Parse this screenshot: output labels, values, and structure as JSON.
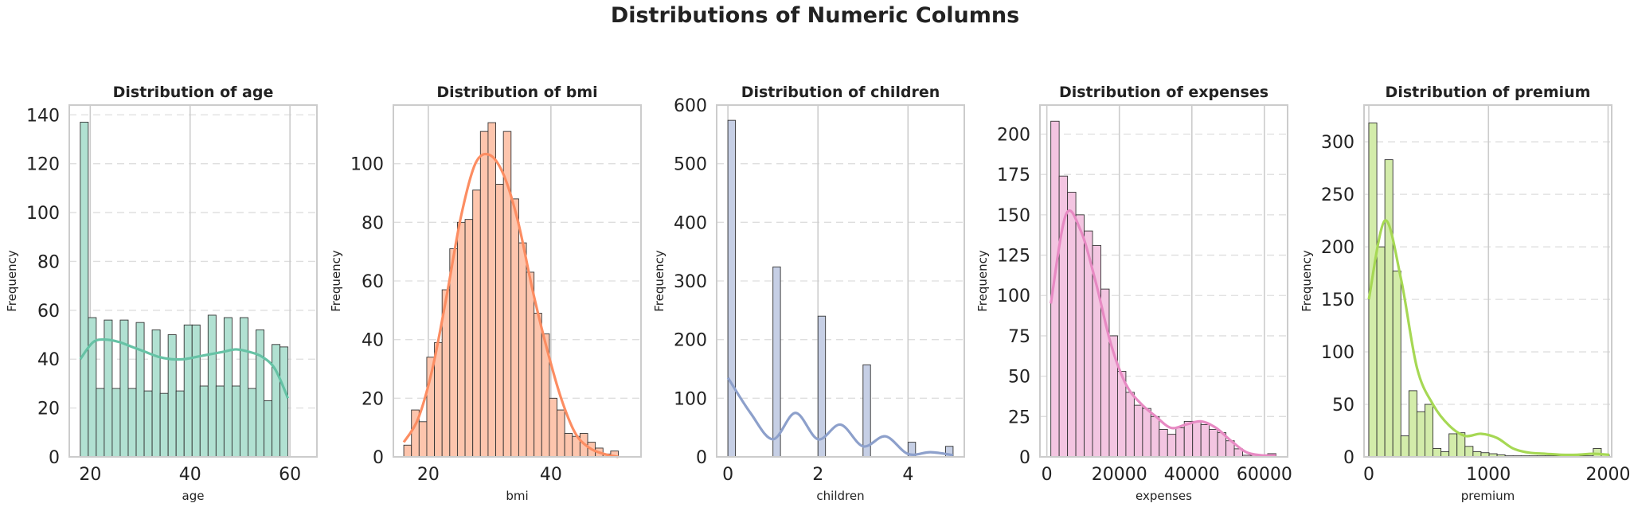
{
  "figure": {
    "title": "Distributions of Numeric Columns"
  },
  "chart_data": [
    {
      "type": "bar",
      "title": "Distribution of age",
      "xlabel": "age",
      "ylabel": "Frequency",
      "xlim": [
        15.8,
        65.4
      ],
      "ylim": [
        0,
        144
      ],
      "xticks": [
        20,
        40,
        60
      ],
      "yticks": [
        0,
        20,
        40,
        60,
        80,
        100,
        120,
        140
      ],
      "grid_x": "solid",
      "grid_y": "dashed",
      "color": "#66c2a5",
      "fill": "#b1e1d2",
      "bin_start": 18,
      "bin_width": 1.6,
      "values": [
        137,
        57,
        28,
        56,
        28,
        56,
        28,
        55,
        27,
        52,
        26,
        50,
        27,
        54,
        54,
        29,
        58,
        29,
        57,
        29,
        57,
        28,
        52,
        23,
        46,
        45
      ],
      "kde": [
        40,
        47,
        48,
        47,
        45,
        43,
        41,
        40,
        40,
        41,
        42,
        43,
        44,
        43,
        41,
        36,
        24
      ]
    },
    {
      "type": "bar",
      "title": "Distribution of bmi",
      "xlabel": "bmi",
      "ylabel": "Frequency",
      "xlim": [
        14.3,
        54.7
      ],
      "ylim": [
        0,
        120
      ],
      "xticks": [
        20,
        40
      ],
      "yticks": [
        0,
        20,
        40,
        60,
        80,
        100
      ],
      "grid_x": "solid",
      "grid_y": "dashed",
      "color": "#fc8d62",
      "fill": "#fdc5ad",
      "bin_start": 16,
      "bin_width": 1.25,
      "values": [
        4,
        16,
        12,
        34,
        39,
        57,
        71,
        80,
        81,
        91,
        111,
        114,
        93,
        111,
        88,
        73,
        63,
        49,
        42,
        20,
        16,
        8,
        7,
        8,
        5,
        3,
        1,
        2
      ],
      "kde": [
        5,
        13,
        30,
        55,
        82,
        100,
        103,
        96,
        80,
        57,
        37,
        20,
        8,
        3,
        1,
        0
      ]
    },
    {
      "type": "bar",
      "title": "Distribution of children",
      "xlabel": "children",
      "ylabel": "Frequency",
      "xlim": [
        -0.25,
        5.25
      ],
      "ylim": [
        0,
        600
      ],
      "xticks": [
        0,
        2,
        4
      ],
      "yticks": [
        0,
        100,
        200,
        300,
        400,
        500,
        600
      ],
      "grid_x": "solid",
      "grid_y": "dashed",
      "color": "#8da0cb",
      "fill": "#c6cfe5",
      "bin_start": 0,
      "bin_width": 0.1667,
      "values": [
        574,
        0,
        0,
        0,
        0,
        0,
        324,
        0,
        0,
        0,
        0,
        0,
        240,
        0,
        0,
        0,
        0,
        0,
        157,
        0,
        0,
        0,
        0,
        0,
        25,
        0,
        0,
        0,
        0,
        18
      ],
      "kde": [
        135,
        75,
        30,
        75,
        30,
        55,
        18,
        35,
        5,
        8,
        3
      ]
    },
    {
      "type": "bar",
      "title": "Distribution of expenses",
      "xlabel": "expenses",
      "ylabel": "Frequency",
      "xlim": [
        -1900,
        66400
      ],
      "ylim": [
        0,
        218
      ],
      "xticks": [
        0,
        20000,
        40000,
        60000
      ],
      "yticks": [
        0,
        25,
        50,
        75,
        100,
        125,
        150,
        175,
        200
      ],
      "grid_x": "solid",
      "grid_y": "dashed",
      "color": "#e78ac3",
      "fill": "#f3c5e1",
      "bin_start": 1100,
      "bin_width": 2300,
      "values": [
        208,
        174,
        164,
        150,
        140,
        131,
        104,
        75,
        53,
        40,
        32,
        30,
        25,
        17,
        14,
        18,
        22,
        22,
        20,
        17,
        15,
        10,
        5,
        1,
        1,
        1,
        2
      ],
      "kde": [
        95,
        150,
        140,
        108,
        70,
        45,
        33,
        25,
        18,
        20,
        22,
        18,
        10,
        3,
        1,
        1
      ]
    },
    {
      "type": "bar",
      "title": "Distribution of premium",
      "xlabel": "premium",
      "ylabel": "Frequency",
      "xlim": [
        -40,
        2030
      ],
      "ylim": [
        0,
        335
      ],
      "xticks": [
        0,
        1000,
        2000
      ],
      "yticks": [
        0,
        50,
        100,
        150,
        200,
        250,
        300
      ],
      "grid_x": "solid",
      "grid_y": "dashed",
      "color": "#a6d854",
      "fill": "#d3ecaa",
      "bin_start": 0,
      "bin_width": 67,
      "values": [
        318,
        200,
        283,
        177,
        20,
        63,
        43,
        50,
        8,
        5,
        22,
        23,
        10,
        5,
        4,
        3,
        2,
        1,
        1,
        1,
        1,
        1,
        1,
        1,
        1,
        1,
        1,
        1,
        8,
        2
      ],
      "kde": [
        150,
        225,
        170,
        85,
        50,
        30,
        20,
        22,
        18,
        8,
        4,
        3,
        2,
        2,
        3,
        2
      ]
    }
  ]
}
